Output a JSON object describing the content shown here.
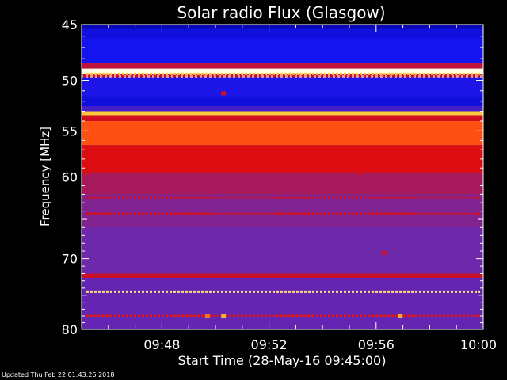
{
  "chart_data": {
    "type": "heatmap",
    "title": "Solar radio Flux (Glasgow)",
    "xlabel": "Start Time (28-May-16 09:45:00)",
    "ylabel": "Frequency [MHz]",
    "x_ticks": [
      "09:48",
      "09:52",
      "09:56",
      "10:00"
    ],
    "x_tick_minutes": [
      48,
      52,
      56,
      60
    ],
    "xlim_minutes": [
      45,
      60
    ],
    "y_ticks": [
      45,
      50,
      55,
      60,
      70,
      80
    ],
    "ylim": [
      45,
      80
    ],
    "y_scale": "log",
    "colormap": "blue-purple-red-yellow-white",
    "bands": [
      {
        "f0": 45.0,
        "f1": 45.4,
        "level": 0.08
      },
      {
        "f0": 45.4,
        "f1": 46.2,
        "level": 0.16
      },
      {
        "f0": 46.2,
        "f1": 48.4,
        "level": 0.2
      },
      {
        "f0": 48.4,
        "f1": 48.9,
        "level": 0.55
      },
      {
        "f0": 48.9,
        "f1": 49.4,
        "level": 1.0
      },
      {
        "f0": 49.4,
        "f1": 49.7,
        "level": 0.6
      },
      {
        "f0": 49.7,
        "f1": 51.5,
        "level": 0.22
      },
      {
        "f0": 51.5,
        "f1": 52.5,
        "level": 0.16
      },
      {
        "f0": 52.5,
        "f1": 53.0,
        "level": 0.3
      },
      {
        "f0": 53.0,
        "f1": 53.4,
        "level": 0.92
      },
      {
        "f0": 53.4,
        "f1": 54.0,
        "level": 0.62
      },
      {
        "f0": 54.0,
        "f1": 56.5,
        "level": 0.82
      },
      {
        "f0": 56.5,
        "f1": 59.5,
        "level": 0.66
      },
      {
        "f0": 59.5,
        "f1": 62.0,
        "level": 0.5
      },
      {
        "f0": 62.0,
        "f1": 66.0,
        "level": 0.42
      },
      {
        "f0": 66.0,
        "f1": 72.0,
        "level": 0.38
      },
      {
        "f0": 72.0,
        "f1": 72.6,
        "level": 0.6
      },
      {
        "f0": 72.6,
        "f1": 80.0,
        "level": 0.36
      }
    ],
    "dashed_lines": [
      {
        "f": 49.4,
        "level": 0.92
      },
      {
        "f": 62.4,
        "level": 0.58
      },
      {
        "f": 64.3,
        "level": 0.66
      },
      {
        "f": 74.5,
        "level": 0.95
      },
      {
        "f": 78.0,
        "level": 0.72
      }
    ],
    "spots": [
      {
        "t": 50.3,
        "f": 51.2,
        "level": 0.62
      },
      {
        "t": 45.2,
        "f": 59.5,
        "level": 0.62
      },
      {
        "t": 55.4,
        "f": 59.5,
        "level": 0.62
      },
      {
        "t": 56.3,
        "f": 69.2,
        "level": 0.6
      },
      {
        "t": 49.7,
        "f": 78.0,
        "level": 0.85
      },
      {
        "t": 50.3,
        "f": 78.0,
        "level": 0.9
      },
      {
        "t": 56.9,
        "f": 78.0,
        "level": 0.9
      }
    ]
  },
  "footer": "Updated Thu Feb 22 01:43:26 2018"
}
